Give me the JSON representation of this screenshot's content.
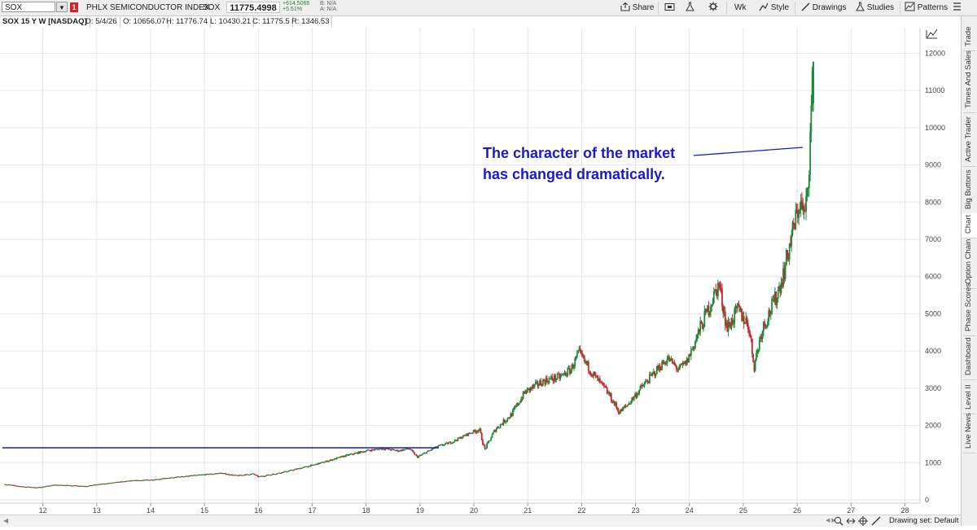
{
  "toolbar": {
    "symbol": "SOX",
    "dropdown_glyph": "▼",
    "flag": "1",
    "description": "PHLX SEMICONDUCTOR INDEX",
    "ticker": "SOX",
    "last_price": "11775.4998",
    "net_change": "+614.5066",
    "pct_change": "+5.51%",
    "bid": "B: N/A",
    "ask": "A: N/A",
    "share": "Share",
    "aggregation": "Wk",
    "style": "Style",
    "drawings": "Drawings",
    "studies": "Studies",
    "patterns": "Patterns",
    "icons": {
      "share": "share-icon",
      "screenshot": "screenshot-icon",
      "flask": "flask-icon",
      "gear": "gear-icon",
      "style": "style-icon",
      "pencil": "pencil-icon",
      "studies": "studies-icon",
      "patterns": "patterns-icon"
    }
  },
  "infobar": {
    "title": "SOX 15 Y W [NASDAQ]",
    "date": "D: 5/4/26",
    "open": "O: 10656.07",
    "high": "H: 11776.74",
    "low": "L: 10430.21",
    "close": "C: 11775.5",
    "range": "R: 1346.53"
  },
  "annotation": {
    "line1": "The character of the market",
    "line2": "has changed dramatically.",
    "color": "#1a1acc"
  },
  "sidebar": {
    "tabs": [
      "Trade",
      "Times And Sales",
      "Active Trader",
      "Big Buttons",
      "Chart",
      "Option Chain",
      "Phase Scores",
      "Dashboard",
      "Level II",
      "Live News"
    ],
    "active": "Chart"
  },
  "bottom": {
    "drawing_set": "Drawing set: Default"
  },
  "colors": {
    "up": "#1b8a3c",
    "down": "#c62828",
    "hline": "#1a1acc",
    "grid": "#e6e6e6"
  },
  "chart_data": {
    "type": "candlestick",
    "title": "SOX 15 Y W [NASDAQ]",
    "x_label": "",
    "y_label": "",
    "x_tick_labels": [
      "12",
      "13",
      "14",
      "15",
      "16",
      "17",
      "18",
      "19",
      "20",
      "21",
      "22",
      "23",
      "24",
      "25",
      "26",
      "27",
      "28"
    ],
    "y_ticks": [
      0,
      1000,
      2000,
      3000,
      4000,
      5000,
      6000,
      7000,
      8000,
      9000,
      10000,
      11000,
      12000
    ],
    "ylim": [
      0,
      12600
    ],
    "xlim": [
      2011.25,
      2028.25
    ],
    "horizontal_line": 1400,
    "last_bar": {
      "date": "5/4/26",
      "open": 10656.07,
      "high": 11776.74,
      "low": 10430.21,
      "close": 11775.5
    },
    "price_path": [
      [
        2011.3,
        420
      ],
      [
        2011.6,
        360
      ],
      [
        2011.9,
        330
      ],
      [
        2012.2,
        400
      ],
      [
        2012.5,
        390
      ],
      [
        2012.8,
        370
      ],
      [
        2013.0,
        410
      ],
      [
        2013.3,
        460
      ],
      [
        2013.6,
        510
      ],
      [
        2014.0,
        540
      ],
      [
        2014.3,
        580
      ],
      [
        2014.6,
        630
      ],
      [
        2015.0,
        680
      ],
      [
        2015.3,
        720
      ],
      [
        2015.6,
        650
      ],
      [
        2015.9,
        700
      ],
      [
        2016.0,
        620
      ],
      [
        2016.3,
        700
      ],
      [
        2016.6,
        790
      ],
      [
        2017.0,
        930
      ],
      [
        2017.3,
        1050
      ],
      [
        2017.6,
        1180
      ],
      [
        2018.0,
        1320
      ],
      [
        2018.3,
        1380
      ],
      [
        2018.6,
        1320
      ],
      [
        2018.8,
        1380
      ],
      [
        2018.95,
        1150
      ],
      [
        2019.3,
        1420
      ],
      [
        2019.6,
        1560
      ],
      [
        2019.9,
        1780
      ],
      [
        2020.1,
        1900
      ],
      [
        2020.2,
        1350
      ],
      [
        2020.4,
        1900
      ],
      [
        2020.7,
        2300
      ],
      [
        2020.95,
        2900
      ],
      [
        2021.3,
        3200
      ],
      [
        2021.6,
        3300
      ],
      [
        2021.8,
        3500
      ],
      [
        2021.95,
        3950
      ],
      [
        2022.2,
        3400
      ],
      [
        2022.5,
        2850
      ],
      [
        2022.7,
        2350
      ],
      [
        2022.85,
        2550
      ],
      [
        2023.1,
        3000
      ],
      [
        2023.4,
        3500
      ],
      [
        2023.6,
        3800
      ],
      [
        2023.8,
        3500
      ],
      [
        2023.95,
        3700
      ],
      [
        2024.2,
        4600
      ],
      [
        2024.4,
        5300
      ],
      [
        2024.55,
        5800
      ],
      [
        2024.7,
        4600
      ],
      [
        2024.9,
        5100
      ],
      [
        2025.1,
        4700
      ],
      [
        2025.2,
        3600
      ],
      [
        2025.35,
        4600
      ],
      [
        2025.6,
        5400
      ],
      [
        2025.75,
        6100
      ],
      [
        2025.9,
        7100
      ],
      [
        2026.05,
        8000
      ],
      [
        2026.15,
        7600
      ],
      [
        2026.22,
        9000
      ],
      [
        2026.3,
        11775
      ]
    ]
  }
}
